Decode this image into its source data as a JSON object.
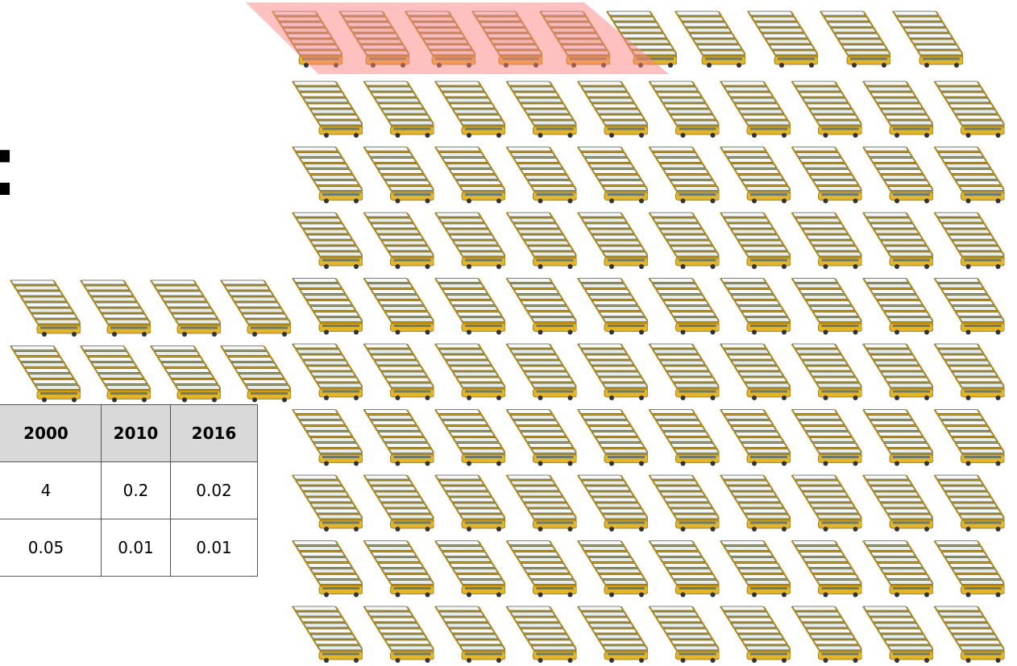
{
  "heading": ":",
  "table": {
    "header": [
      "2000",
      "2010",
      "2016"
    ],
    "rows": [
      [
        "4",
        "0.2",
        "0.02"
      ],
      [
        "0.05",
        "0.01",
        "0.01"
      ]
    ]
  }
}
